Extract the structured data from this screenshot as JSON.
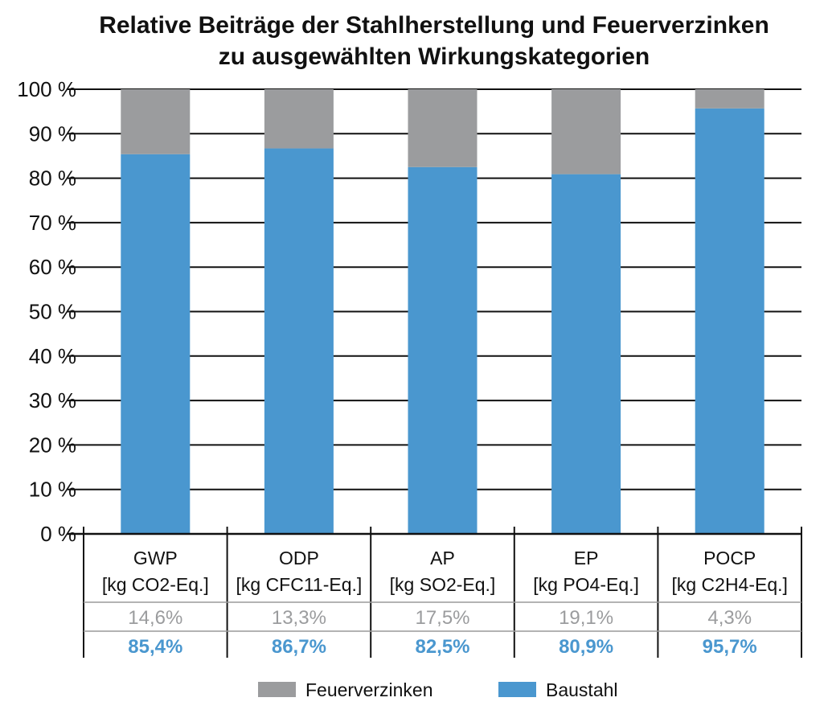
{
  "chart_data": {
    "type": "bar",
    "stacked": true,
    "title_lines": [
      "Relative Beiträge der Stahlherstellung und Feuerverzinken",
      "zu ausgewählten Wirkungskategorien"
    ],
    "categories": [
      {
        "name": "GWP",
        "unit": "[kg CO2-Eq.]"
      },
      {
        "name": "ODP",
        "unit": "[kg CFC11-Eq.]"
      },
      {
        "name": "AP",
        "unit": "[kg SO2-Eq.]"
      },
      {
        "name": "EP",
        "unit": "[kg PO4-Eq.]"
      },
      {
        "name": "POCP",
        "unit": "[kg C2H4-Eq.]"
      }
    ],
    "series": [
      {
        "name": "Baustahl",
        "color": "#4a97cf",
        "values": [
          85.4,
          86.7,
          82.5,
          80.9,
          95.7
        ],
        "labels": [
          "85,4%",
          "86,7%",
          "82,5%",
          "80,9%",
          "95,7%"
        ]
      },
      {
        "name": "Feuerverzinken",
        "color": "#9b9c9e",
        "values": [
          14.6,
          13.3,
          17.5,
          19.1,
          4.3
        ],
        "labels": [
          "14,6%",
          "13,3%",
          "17,5%",
          "19,1%",
          "4,3%"
        ]
      }
    ],
    "ylim": [
      0,
      100
    ],
    "yticks": [
      "0 %",
      "10 %",
      "20 %",
      "30 %",
      "40 %",
      "50 %",
      "60 %",
      "70 %",
      "80 %",
      "90 %",
      "100 %"
    ],
    "grid": true,
    "legend_position": "bottom",
    "legend_order": [
      "Feuerverzinken",
      "Baustahl"
    ]
  }
}
